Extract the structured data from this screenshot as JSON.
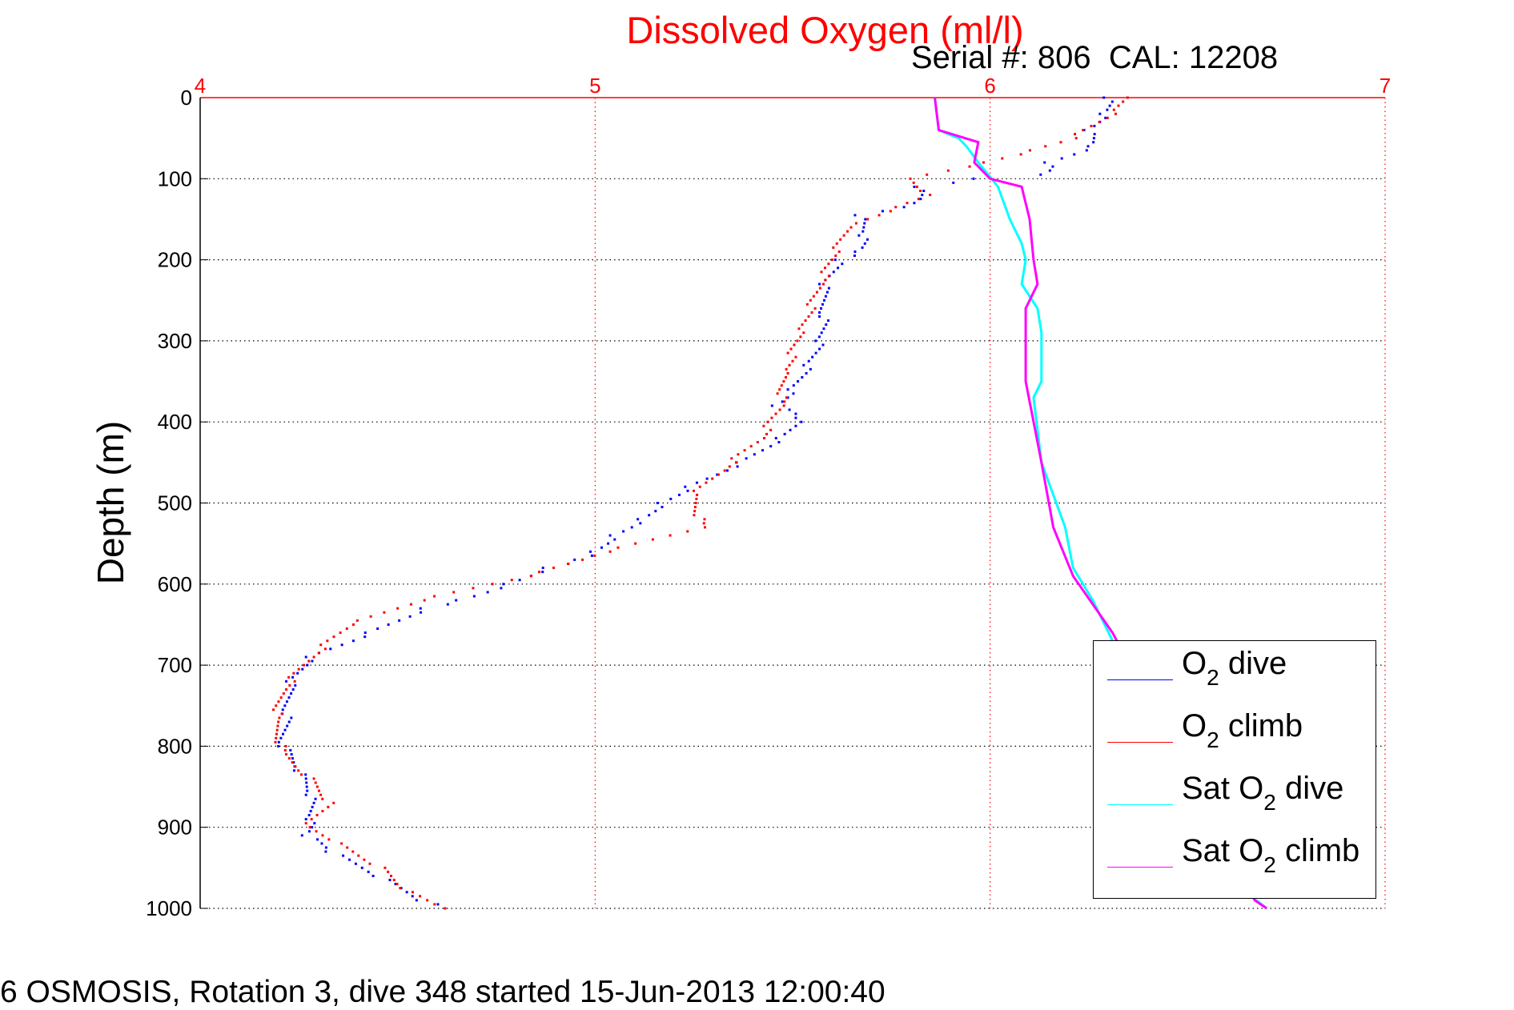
{
  "chart_data": {
    "type": "scatter",
    "title": "Dissolved Oxygen (ml/l)",
    "subtitle": "Serial #: 806  CAL: 12208",
    "xlabel": "",
    "ylabel": "Depth (m)",
    "footer": "6 OSMOSIS, Rotation 3, dive 348 started 15-Jun-2013 12:00:40",
    "xlim": [
      4,
      7
    ],
    "ylim": [
      0,
      1000
    ],
    "y_reversed": true,
    "x_axis_position": "top",
    "xticks": [
      "4",
      "5",
      "6",
      "7"
    ],
    "yticks": [
      "0",
      "100",
      "200",
      "300",
      "400",
      "500",
      "600",
      "700",
      "800",
      "900",
      "1000"
    ],
    "grid": true,
    "legend_position": "bottom-right",
    "colors": {
      "title": "#ff0000",
      "xticks": "#ff0000"
    },
    "series": [
      {
        "name": "O2 dive",
        "label_pre": "O",
        "label_sub": "2",
        "label_post": " dive",
        "color": "#0000ff",
        "style": "dots",
        "points": [
          [
            6.3,
            0
          ],
          [
            6.29,
            20
          ],
          [
            6.25,
            40
          ],
          [
            6.26,
            60
          ],
          [
            6.15,
            80
          ],
          [
            6.14,
            95
          ],
          [
            5.97,
            100
          ],
          [
            5.82,
            110
          ],
          [
            5.82,
            130
          ],
          [
            5.67,
            145
          ],
          [
            5.68,
            170
          ],
          [
            5.67,
            190
          ],
          [
            5.62,
            200
          ],
          [
            5.58,
            230
          ],
          [
            5.58,
            270
          ],
          [
            5.57,
            300
          ],
          [
            5.54,
            330
          ],
          [
            5.5,
            360
          ],
          [
            5.46,
            380
          ],
          [
            5.52,
            395
          ],
          [
            5.47,
            420
          ],
          [
            5.37,
            450
          ],
          [
            5.24,
            480
          ],
          [
            5.17,
            500
          ],
          [
            5.12,
            520
          ],
          [
            5.05,
            540
          ],
          [
            5.0,
            560
          ],
          [
            4.96,
            570
          ],
          [
            4.88,
            580
          ],
          [
            4.78,
            600
          ],
          [
            4.66,
            620
          ],
          [
            4.57,
            630
          ],
          [
            4.43,
            660
          ],
          [
            4.28,
            690
          ],
          [
            4.23,
            720
          ],
          [
            4.22,
            760
          ],
          [
            4.21,
            800
          ],
          [
            4.25,
            830
          ],
          [
            4.28,
            860
          ],
          [
            4.28,
            890
          ],
          [
            4.27,
            910
          ],
          [
            4.33,
            930
          ],
          [
            4.45,
            960
          ],
          [
            4.56,
            990
          ],
          [
            4.62,
            1000
          ]
        ]
      },
      {
        "name": "O2 climb",
        "label_pre": "O",
        "label_sub": "2",
        "label_post": " climb",
        "color": "#ff0000",
        "style": "dots",
        "points": [
          [
            6.34,
            0
          ],
          [
            6.31,
            20
          ],
          [
            6.21,
            50
          ],
          [
            6.07,
            70
          ],
          [
            5.94,
            85
          ],
          [
            5.79,
            100
          ],
          [
            5.84,
            120
          ],
          [
            5.74,
            140
          ],
          [
            5.64,
            160
          ],
          [
            5.61,
            190
          ],
          [
            5.57,
            230
          ],
          [
            5.52,
            290
          ],
          [
            5.48,
            340
          ],
          [
            5.47,
            380
          ],
          [
            5.42,
            420
          ],
          [
            5.32,
            460
          ],
          [
            5.25,
            490
          ],
          [
            5.27,
            530
          ],
          [
            5.03,
            560
          ],
          [
            4.96,
            570
          ],
          [
            4.83,
            590
          ],
          [
            4.56,
            620
          ],
          [
            4.38,
            650
          ],
          [
            4.28,
            690
          ],
          [
            4.21,
            730
          ],
          [
            4.19,
            770
          ],
          [
            4.21,
            810
          ],
          [
            4.28,
            840
          ],
          [
            4.33,
            870
          ],
          [
            4.27,
            900
          ],
          [
            4.35,
            920
          ],
          [
            4.46,
            950
          ],
          [
            4.53,
            980
          ],
          [
            4.62,
            1000
          ]
        ]
      },
      {
        "name": "Sat O2 dive",
        "label_pre": "Sat O",
        "label_sub": "2",
        "label_post": " dive",
        "color": "#00ffff",
        "style": "line",
        "points": [
          [
            5.86,
            0
          ],
          [
            5.87,
            40
          ],
          [
            5.92,
            50
          ],
          [
            5.94,
            60
          ],
          [
            5.97,
            80
          ],
          [
            6.02,
            110
          ],
          [
            6.05,
            150
          ],
          [
            6.08,
            180
          ],
          [
            6.09,
            200
          ],
          [
            6.08,
            230
          ],
          [
            6.12,
            260
          ],
          [
            6.13,
            290
          ],
          [
            6.13,
            350
          ],
          [
            6.11,
            370
          ],
          [
            6.13,
            450
          ],
          [
            6.19,
            530
          ],
          [
            6.21,
            580
          ],
          [
            6.26,
            620
          ],
          [
            6.32,
            680
          ],
          [
            6.45,
            780
          ],
          [
            6.56,
            880
          ],
          [
            6.66,
            985
          ],
          [
            6.7,
            1000
          ]
        ]
      },
      {
        "name": "Sat O2 climb",
        "label_pre": "Sat O",
        "label_sub": "2",
        "label_post": " climb",
        "color": "#ff00ff",
        "style": "line",
        "points": [
          [
            5.86,
            0
          ],
          [
            5.87,
            40
          ],
          [
            5.97,
            55
          ],
          [
            5.96,
            80
          ],
          [
            6.0,
            100
          ],
          [
            6.08,
            110
          ],
          [
            6.1,
            150
          ],
          [
            6.11,
            200
          ],
          [
            6.12,
            230
          ],
          [
            6.09,
            260
          ],
          [
            6.09,
            350
          ],
          [
            6.13,
            450
          ],
          [
            6.16,
            530
          ],
          [
            6.21,
            590
          ],
          [
            6.31,
            660
          ],
          [
            6.44,
            780
          ],
          [
            6.56,
            890
          ],
          [
            6.67,
            990
          ],
          [
            6.7,
            1000
          ]
        ]
      }
    ]
  }
}
